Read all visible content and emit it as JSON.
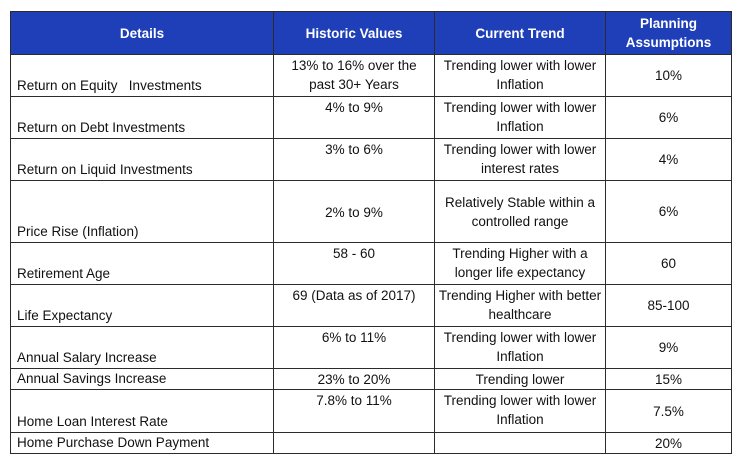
{
  "headers": {
    "details": "Details",
    "historic": "Historic Values",
    "trend": "Current Trend",
    "planning": "Planning Assumptions"
  },
  "rows": [
    {
      "details": "Return on Equity   Investments",
      "historic": "13% to 16% over the past 30+ Years",
      "trend": "Trending lower with lower Inflation",
      "planning": "10%"
    },
    {
      "details": "Return on Debt Investments",
      "historic": "4% to 9%",
      "trend": "Trending lower with lower Inflation",
      "planning": "6%"
    },
    {
      "details": "Return on Liquid Investments",
      "historic": "3% to 6%",
      "trend": "Trending lower with lower interest rates",
      "planning": "4%"
    },
    {
      "details": "Price Rise (Inflation)",
      "historic": "2% to 9%",
      "trend": "Relatively Stable within a controlled range",
      "planning": "6%"
    },
    {
      "details": "Retirement Age",
      "historic": "58 - 60",
      "trend": "Trending Higher with a longer life expectancy",
      "planning": "60"
    },
    {
      "details": "Life Expectancy",
      "historic": "69 (Data as of 2017)",
      "trend": "Trending Higher with better healthcare",
      "planning": "85-100"
    },
    {
      "details": "Annual Salary Increase",
      "historic": "6% to 11%",
      "trend": "Trending lower with lower Inflation",
      "planning": "9%"
    },
    {
      "details": "Annual Savings Increase",
      "historic": "23% to 20%",
      "trend": "Trending lower",
      "planning": "15%"
    },
    {
      "details": "Home Loan Interest Rate",
      "historic": "7.8% to 11%",
      "trend": "Trending lower with lower Inflation",
      "planning": "7.5%"
    },
    {
      "details": "Home Purchase Down Payment",
      "historic": "",
      "trend": "",
      "planning": "20%"
    }
  ]
}
